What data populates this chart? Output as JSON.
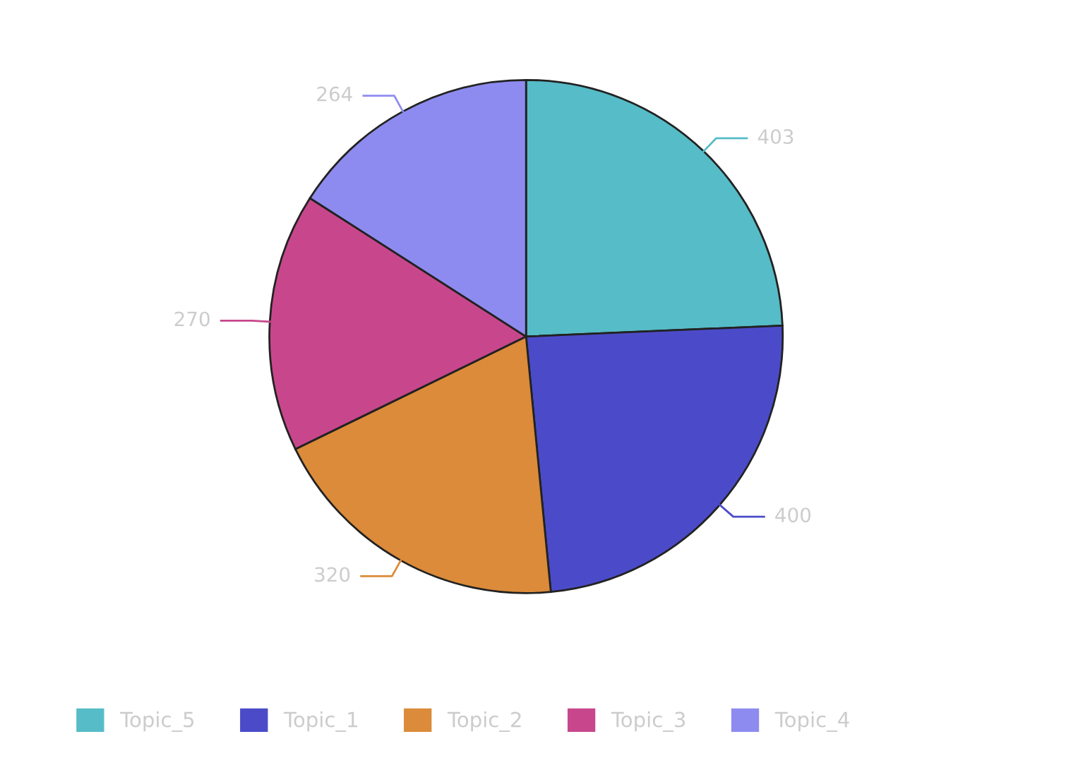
{
  "chart_data": {
    "type": "pie",
    "categories": [
      "Topic_5",
      "Topic_1",
      "Topic_2",
      "Topic_3",
      "Topic_4"
    ],
    "values": [
      403,
      400,
      320,
      270,
      264
    ],
    "colors": [
      "#56bcc7",
      "#4b4bc9",
      "#db8b39",
      "#c8478c",
      "#8e8bf0"
    ],
    "data_labels": true,
    "legend": "bottom"
  }
}
